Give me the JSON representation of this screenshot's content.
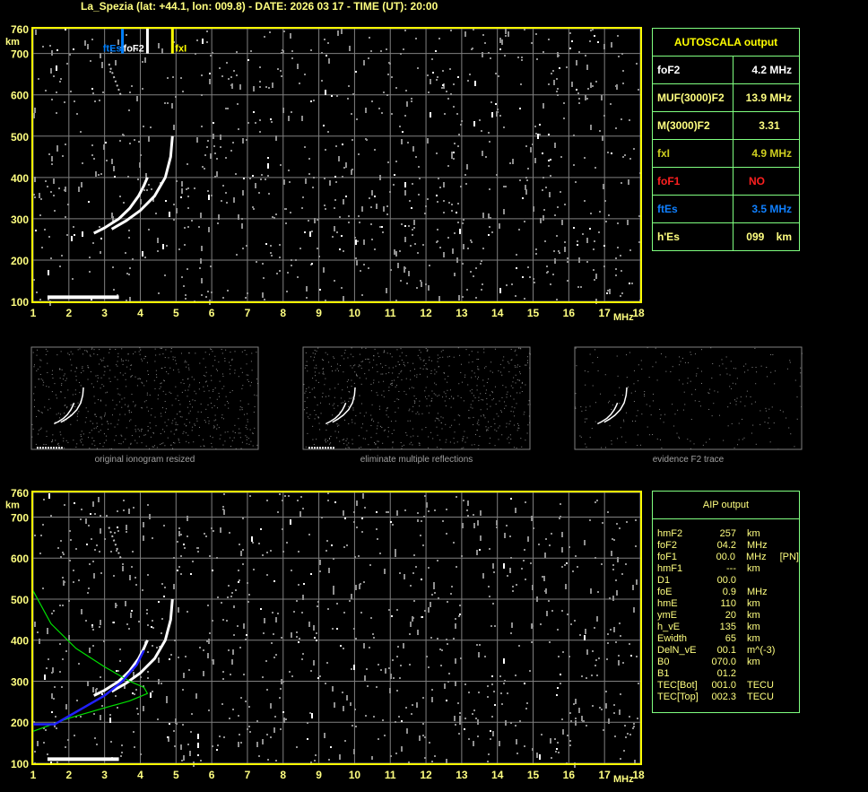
{
  "header": {
    "title": "La_Spezia (lat: +44.1, lon: 009.8) - DATE: 2026 03 17 - TIME (UT): 20:00"
  },
  "axes": {
    "y_unit": "km",
    "x_unit": "MHz",
    "y_ticks": [
      760,
      700,
      600,
      500,
      400,
      300,
      200,
      100
    ],
    "x_ticks": [
      1,
      2,
      3,
      4,
      5,
      6,
      7,
      8,
      9,
      10,
      11,
      12,
      13,
      14,
      15,
      16,
      17,
      18
    ],
    "y_range": [
      100,
      760
    ],
    "x_range": [
      1,
      18
    ]
  },
  "markers": [
    {
      "label": "ftEs",
      "freq": 3.5,
      "color": "#0080ff"
    },
    {
      "label": "foF2",
      "freq": 4.2,
      "color": "#ffffff"
    },
    {
      "label": "fxI",
      "freq": 4.9,
      "color": "#ffff00"
    }
  ],
  "autoscala": {
    "title": "AUTOSCALA output",
    "rows": [
      {
        "key": "foF2",
        "value": "4.2 MHz",
        "color": "#ffffff"
      },
      {
        "key": "MUF(3000)F2",
        "value": "13.9 MHz",
        "color": "#ffff80"
      },
      {
        "key": "M(3000)F2",
        "value": "3.31    ",
        "color": "#ffff80"
      },
      {
        "key": "fxI",
        "value": "4.9 MHz",
        "color": "#d0d020"
      },
      {
        "key": "foF1",
        "value": "NO         ",
        "color": "#ff2020"
      },
      {
        "key": "ftEs",
        "value": "3.5 MHz",
        "color": "#1080ff"
      },
      {
        "key": "h'Es",
        "value": "099    km",
        "color": "#ffff80"
      }
    ]
  },
  "thumbnails": [
    {
      "caption": "original ionogram resized"
    },
    {
      "caption": "eliminate multiple reflections"
    },
    {
      "caption": "evidence F2 trace"
    }
  ],
  "aip": {
    "title": "AIP output",
    "rows": [
      [
        "hmF2",
        "257",
        "km",
        ""
      ],
      [
        "foF2",
        "04.2",
        "MHz",
        ""
      ],
      [
        "foF1",
        "00.0",
        "MHz",
        "[PN]"
      ],
      [
        "hmF1",
        "---",
        "km",
        ""
      ],
      [
        "D1",
        "00.0",
        "",
        ""
      ],
      [
        "foE",
        "0.9",
        "MHz",
        ""
      ],
      [
        "hmE",
        "110",
        "km",
        ""
      ],
      [
        "ymE",
        "20",
        "km",
        ""
      ],
      [
        "h_vE",
        "135",
        "km",
        ""
      ],
      [
        "Ewidth",
        "65",
        "km",
        ""
      ],
      [
        "DelN_vE",
        "00.1",
        "m^(-3)",
        ""
      ],
      [
        "B0",
        "070.0",
        "km",
        ""
      ],
      [
        "B1",
        "01.2",
        "",
        ""
      ],
      [
        "TEC[Bot]",
        "001.0",
        "TECU",
        ""
      ],
      [
        "TEC[Top]",
        "002.3",
        "TECU",
        ""
      ]
    ]
  },
  "traces": {
    "o_trace": [
      [
        2.7,
        265
      ],
      [
        3.0,
        278
      ],
      [
        3.4,
        300
      ],
      [
        3.7,
        325
      ],
      [
        3.95,
        355
      ],
      [
        4.1,
        380
      ],
      [
        4.2,
        400
      ]
    ],
    "x_trace": [
      [
        3.2,
        275
      ],
      [
        3.6,
        295
      ],
      [
        4.0,
        320
      ],
      [
        4.4,
        355
      ],
      [
        4.7,
        400
      ],
      [
        4.85,
        450
      ],
      [
        4.9,
        500
      ]
    ],
    "blue_trace": [
      [
        1.0,
        195
      ],
      [
        1.6,
        195
      ],
      [
        2.0,
        215
      ],
      [
        2.5,
        240
      ],
      [
        3.0,
        265
      ],
      [
        3.5,
        300
      ],
      [
        3.9,
        340
      ],
      [
        4.1,
        375
      ]
    ],
    "green_profile": [
      [
        1.0,
        520
      ],
      [
        1.5,
        440
      ],
      [
        2.2,
        380
      ],
      [
        3.0,
        335
      ],
      [
        3.7,
        300
      ],
      [
        4.1,
        285
      ],
      [
        4.2,
        270
      ],
      [
        3.7,
        252
      ],
      [
        3.0,
        235
      ],
      [
        2.0,
        210
      ],
      [
        1.0,
        178
      ]
    ],
    "es_trace": [
      [
        1.4,
        110
      ],
      [
        3.4,
        110
      ]
    ]
  },
  "colors": {
    "frame": "#ffff00",
    "grid": "#808080",
    "table_border": "#80ff80",
    "axis_text": "#ffff80"
  }
}
